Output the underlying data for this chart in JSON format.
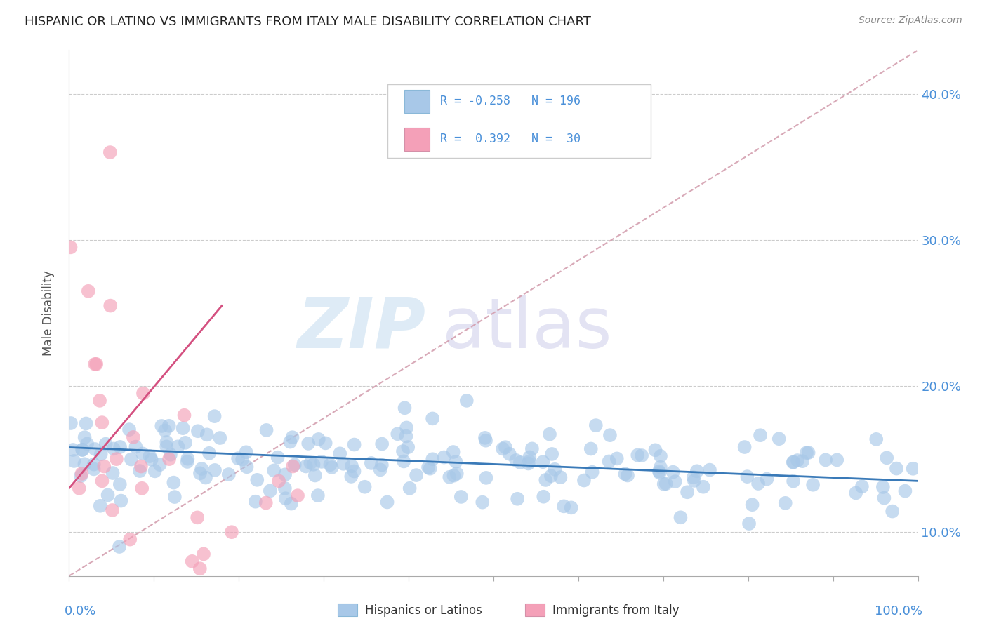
{
  "title": "HISPANIC OR LATINO VS IMMIGRANTS FROM ITALY MALE DISABILITY CORRELATION CHART",
  "source": "Source: ZipAtlas.com",
  "ylabel": "Male Disability",
  "xlim": [
    0,
    100
  ],
  "ylim": [
    7,
    43
  ],
  "yticks": [
    10.0,
    20.0,
    30.0,
    40.0
  ],
  "ytick_labels": [
    "10.0%",
    "20.0%",
    "30.0%",
    "40.0%"
  ],
  "blue_R": -0.258,
  "blue_N": 196,
  "pink_R": 0.392,
  "pink_N": 30,
  "blue_scatter_color": "#a8c8e8",
  "pink_scatter_color": "#f4a0b8",
  "trend_blue_color": "#3a7ab8",
  "trend_pink_color": "#d45080",
  "trend_diag_color": "#d4a0b0",
  "legend_label_blue": "Hispanics or Latinos",
  "legend_label_pink": "Immigrants from Italy",
  "blue_trend_x0": 0,
  "blue_trend_x1": 100,
  "blue_trend_y0": 15.8,
  "blue_trend_y1": 13.5,
  "pink_trend_x0": 0,
  "pink_trend_x1": 18,
  "pink_trend_y0": 13.0,
  "pink_trend_y1": 25.5,
  "diag_x0": 0,
  "diag_x1": 100,
  "diag_y0": 7,
  "diag_y1": 43,
  "watermark_zip_color": "#c8dff0",
  "watermark_atlas_color": "#c8c8e8",
  "title_color": "#222222",
  "source_color": "#888888",
  "axis_label_color": "#4a90d9",
  "ylabel_color": "#555555",
  "legend_text_color": "#4a90d9"
}
